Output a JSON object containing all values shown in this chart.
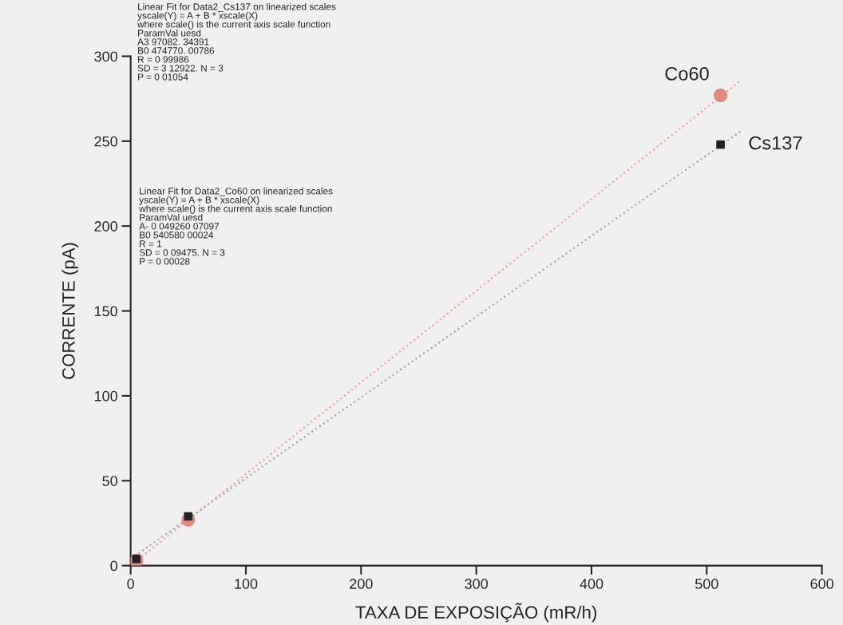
{
  "chart_data": {
    "type": "scatter",
    "xlabel": "TAXA DE EXPOSIÇÃO (mR/h)",
    "ylabel": "CORRENTE (pA)",
    "xlim": [
      0,
      600
    ],
    "xticks": [
      0,
      100,
      200,
      300,
      400,
      500,
      600
    ],
    "ylim": [
      0,
      300
    ],
    "yticks": [
      0,
      50,
      100,
      150,
      200,
      250,
      300
    ],
    "grid": false,
    "series": [
      {
        "name": "Co60",
        "marker": "circle",
        "color": "#e08a80",
        "x": [
          5,
          50,
          512
        ],
        "values": [
          3,
          27,
          277
        ]
      },
      {
        "name": "Cs137",
        "marker": "square",
        "color": "#222222",
        "x": [
          5,
          50,
          512
        ],
        "values": [
          4,
          29,
          248
        ]
      },
      {
        "type": "line",
        "marker": "none",
        "line_style": "dotted",
        "color": "#e8a8a0",
        "x": [
          0,
          530
        ],
        "values": [
          0,
          286
        ]
      },
      {
        "type": "line",
        "marker": "none",
        "line_style": "dotted",
        "color": "#aaaaaa",
        "x": [
          0,
          530
        ],
        "values": [
          4,
          256
        ]
      }
    ],
    "annotations": [
      "Linear Fit for Data2_Cs137 on linearized scales\nyscale(Y) = A + B * xscale(X)\nwhere scale() is the current axis scale function\nParamVal uesd\nA3 97082. 34391\nB0 474770. 00786\nR = 0 99986\nSD = 3 12922. N = 3\nP = 0 01054",
      "Linear Fit for Data2_Co60 on linearized scales\nyscale(Y) = A + B * xscale(X)\nwhere scale() is the current axis scale function\nParamVal uesd\nA- 0 049260 07097\nB0 540580 00024\nR = 1\nSD = 0 09475. N = 3\nP = 0 00028"
    ]
  }
}
